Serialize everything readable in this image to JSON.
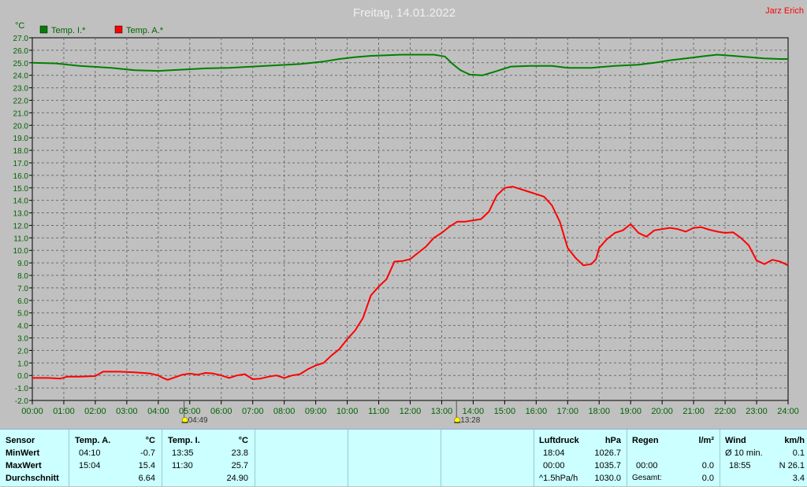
{
  "title": "Freitag, 14.01.2022",
  "author": "Jarz Erich",
  "unit_label": "°C",
  "colors": {
    "indoor": "#008000",
    "outdoor": "#ff0000",
    "author": "#ff0000",
    "title": "#f0f0f0"
  },
  "chart_data": {
    "type": "line",
    "title": "Freitag, 14.01.2022",
    "ylabel": "°C",
    "xlabel": "",
    "ylim": [
      -2.0,
      27.0
    ],
    "xlim": [
      0,
      24
    ],
    "grid": true,
    "legend_position": "top-left",
    "x_ticks": [
      "00:00",
      "01:00",
      "02:00",
      "03:00",
      "04:00",
      "05:00",
      "06:00",
      "07:00",
      "08:00",
      "09:00",
      "10:00",
      "11:00",
      "12:00",
      "13:00",
      "14:00",
      "15:00",
      "16:00",
      "17:00",
      "18:00",
      "19:00",
      "20:00",
      "21:00",
      "22:00",
      "23:00",
      "24:00"
    ],
    "y_ticks": [
      "-2.0",
      "-1.0",
      "0.0",
      "1.0",
      "2.0",
      "3.0",
      "4.0",
      "5.0",
      "6.0",
      "7.0",
      "8.0",
      "9.0",
      "10.0",
      "11.0",
      "12.0",
      "13.0",
      "14.0",
      "15.0",
      "16.0",
      "17.0",
      "18.0",
      "19.0",
      "20.0",
      "21.0",
      "22.0",
      "23.0",
      "24.0",
      "25.0",
      "26.0",
      "27.0"
    ],
    "sun_events": [
      {
        "label": "04:49",
        "x": 4.82
      },
      {
        "label": "13:28",
        "x": 13.47
      }
    ],
    "series": [
      {
        "name": "Temp. I.*",
        "color": "#008000",
        "x": [
          0,
          0.75,
          1.5,
          2.5,
          3.25,
          4,
          4.75,
          5.5,
          6.25,
          7,
          7.75,
          8.5,
          9.25,
          9.75,
          10.25,
          10.75,
          11.25,
          11.75,
          12.25,
          12.75,
          13.1,
          13.35,
          13.6,
          13.9,
          14.3,
          14.7,
          15.2,
          15.8,
          16.5,
          17,
          17.75,
          18.5,
          19.25,
          19.75,
          20.25,
          20.75,
          21.25,
          21.75,
          22.25,
          22.75,
          23.25,
          23.75,
          24
        ],
        "y": [
          25.0,
          24.95,
          24.75,
          24.6,
          24.4,
          24.35,
          24.45,
          24.55,
          24.6,
          24.7,
          24.8,
          24.9,
          25.1,
          25.3,
          25.45,
          25.55,
          25.6,
          25.65,
          25.65,
          25.65,
          25.5,
          24.9,
          24.4,
          24.05,
          24.0,
          24.3,
          24.7,
          24.75,
          24.75,
          24.6,
          24.6,
          24.75,
          24.85,
          25.0,
          25.2,
          25.35,
          25.5,
          25.65,
          25.55,
          25.45,
          25.35,
          25.3,
          25.3
        ]
      },
      {
        "name": "Temp. A.*",
        "color": "#ff0000",
        "x": [
          0,
          0.5,
          0.9,
          1.1,
          1.5,
          2,
          2.25,
          2.75,
          3.25,
          3.75,
          4,
          4.15,
          4.3,
          4.75,
          5,
          5.25,
          5.5,
          5.75,
          6,
          6.25,
          6.5,
          6.75,
          7,
          7.25,
          7.5,
          7.75,
          8,
          8.25,
          8.5,
          8.75,
          9,
          9.25,
          9.5,
          9.75,
          10,
          10.25,
          10.5,
          10.75,
          11,
          11.25,
          11.5,
          11.75,
          12,
          12.25,
          12.5,
          12.75,
          13,
          13.25,
          13.5,
          13.75,
          14,
          14.25,
          14.5,
          14.75,
          15,
          15.25,
          15.5,
          15.75,
          16,
          16.25,
          16.5,
          16.75,
          17,
          17.25,
          17.5,
          17.75,
          17.9,
          18,
          18.25,
          18.5,
          18.75,
          19,
          19.25,
          19.5,
          19.75,
          20,
          20.25,
          20.5,
          20.75,
          21,
          21.25,
          21.5,
          21.75,
          22,
          22.25,
          22.5,
          22.75,
          23,
          23.25,
          23.5,
          23.75,
          24
        ],
        "y": [
          -0.2,
          -0.2,
          -0.25,
          -0.1,
          -0.1,
          -0.05,
          0.3,
          0.3,
          0.25,
          0.15,
          0.0,
          -0.2,
          -0.35,
          0.05,
          0.15,
          0.05,
          0.2,
          0.15,
          0.0,
          -0.2,
          0.0,
          0.1,
          -0.3,
          -0.25,
          -0.1,
          0.0,
          -0.2,
          0.0,
          0.1,
          0.5,
          0.8,
          1.0,
          1.6,
          2.1,
          2.9,
          3.6,
          4.6,
          6.4,
          7.1,
          7.7,
          9.1,
          9.15,
          9.3,
          9.8,
          10.3,
          11.0,
          11.4,
          11.9,
          12.3,
          12.3,
          12.4,
          12.5,
          13.1,
          14.4,
          15.0,
          15.1,
          14.9,
          14.7,
          14.5,
          14.3,
          13.6,
          12.3,
          10.2,
          9.4,
          8.8,
          8.9,
          9.3,
          10.2,
          10.9,
          11.4,
          11.6,
          12.1,
          11.4,
          11.1,
          11.6,
          11.7,
          11.8,
          11.7,
          11.5,
          11.8,
          11.85,
          11.65,
          11.5,
          11.4,
          11.45,
          11.0,
          10.4,
          9.2,
          8.9,
          9.25,
          9.1,
          8.8
        ]
      }
    ]
  },
  "table": {
    "sensor": {
      "header": "Sensor",
      "rows": [
        "MinWert",
        "MaxWert",
        "Durchschnitt"
      ]
    },
    "temp_a": {
      "header": "Temp. A.",
      "unit": "°C",
      "times": [
        "04:10",
        "15:04",
        ""
      ],
      "values": [
        "-0.7",
        "15.4",
        "6.64"
      ]
    },
    "temp_i": {
      "header": "Temp. I.",
      "unit": "°C",
      "times": [
        "13:35",
        "11:30",
        ""
      ],
      "values": [
        "23.8",
        "25.7",
        "24.90"
      ]
    },
    "luftdruck": {
      "header": "Luftdruck",
      "unit": "hPa",
      "times": [
        "18:04",
        "00:00",
        "^1.5hPa/h"
      ],
      "values": [
        "1026.7",
        "1035.7",
        "1030.0"
      ]
    },
    "regen": {
      "header": "Regen",
      "unit": "l/m²",
      "times": [
        "",
        "00:00",
        "Gesamt:"
      ],
      "values": [
        "",
        "0.0",
        "0.0"
      ]
    },
    "wind": {
      "header": "Wind",
      "unit": "km/h",
      "times": [
        "Ø 10 min.",
        "18:55",
        ""
      ],
      "values": [
        "0.1",
        "N 26.1",
        "3.4"
      ]
    }
  }
}
